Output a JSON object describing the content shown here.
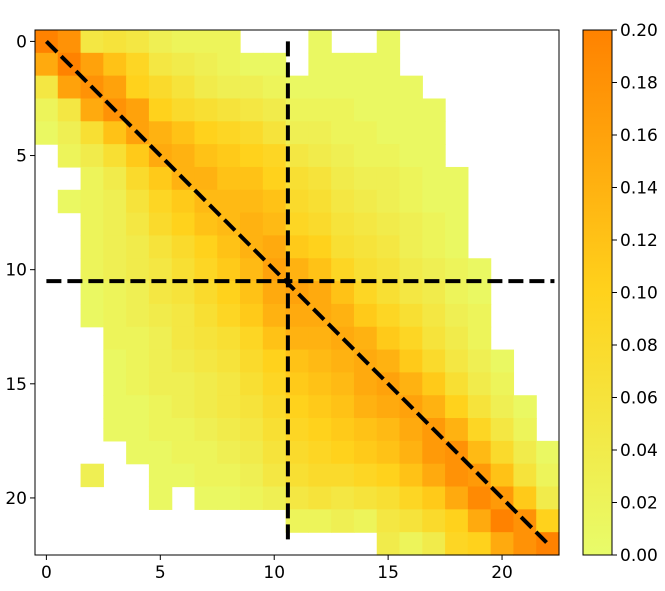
{
  "chart_data": {
    "type": "heatmap",
    "title": "",
    "xlabel": "",
    "ylabel": "",
    "size": 23,
    "xlim": [
      -0.5,
      22.5
    ],
    "ylim": [
      22.5,
      -0.5
    ],
    "x_ticks": [
      0,
      5,
      10,
      15,
      20
    ],
    "y_ticks": [
      0,
      5,
      10,
      15,
      20
    ],
    "colorbar": {
      "min": 0.0,
      "max": 0.2,
      "ticks": [
        "0.00",
        "0.02",
        "0.04",
        "0.06",
        "0.08",
        "0.10",
        "0.12",
        "0.14",
        "0.16",
        "0.18",
        "0.20"
      ],
      "color_low": "#e8fc6a",
      "color_mid": "#ffd21c",
      "color_high": "#ff8200"
    },
    "empty_color": "#ffffff",
    "values": [
      [
        0.2,
        0.18,
        0.05,
        0.06,
        0.05,
        0.03,
        0.02,
        0.02,
        0.02,
        null,
        null,
        null,
        0.01,
        null,
        null,
        0.01,
        null,
        null,
        null,
        null,
        null,
        null,
        null
      ],
      [
        0.15,
        0.2,
        0.16,
        0.12,
        0.09,
        0.05,
        0.04,
        0.03,
        0.02,
        0.01,
        0.01,
        null,
        0.01,
        0.01,
        0.01,
        0.01,
        null,
        null,
        null,
        null,
        null,
        null,
        null
      ],
      [
        0.05,
        0.16,
        0.18,
        0.16,
        0.1,
        0.08,
        0.06,
        0.04,
        0.03,
        0.03,
        0.02,
        0.01,
        0.01,
        0.01,
        0.01,
        0.01,
        0.01,
        null,
        null,
        null,
        null,
        null,
        null
      ],
      [
        0.02,
        0.05,
        0.15,
        0.18,
        0.16,
        0.1,
        0.08,
        0.07,
        0.06,
        0.05,
        0.04,
        0.02,
        0.02,
        0.02,
        0.01,
        0.01,
        0.01,
        0.01,
        null,
        null,
        null,
        null,
        null
      ],
      [
        0.01,
        0.03,
        0.07,
        0.12,
        0.16,
        0.14,
        0.12,
        0.1,
        0.09,
        0.08,
        0.06,
        0.03,
        0.03,
        0.02,
        0.02,
        0.01,
        0.01,
        0.01,
        null,
        null,
        null,
        null,
        null
      ],
      [
        null,
        0.02,
        0.04,
        0.07,
        0.11,
        0.15,
        0.14,
        0.12,
        0.11,
        0.1,
        0.09,
        0.05,
        0.04,
        0.03,
        0.02,
        0.02,
        0.01,
        0.01,
        null,
        null,
        null,
        null,
        null
      ],
      [
        null,
        null,
        0.02,
        0.04,
        0.08,
        0.11,
        0.14,
        0.14,
        0.12,
        0.12,
        0.1,
        0.07,
        0.06,
        0.04,
        0.03,
        0.03,
        0.02,
        0.01,
        0.01,
        null,
        null,
        null,
        null
      ],
      [
        null,
        0.01,
        0.02,
        0.03,
        0.06,
        0.09,
        0.11,
        0.13,
        0.13,
        0.13,
        0.12,
        0.08,
        0.07,
        0.05,
        0.04,
        0.03,
        0.02,
        0.01,
        0.01,
        null,
        null,
        null,
        null
      ],
      [
        null,
        null,
        0.02,
        0.03,
        0.05,
        0.08,
        0.1,
        0.12,
        0.13,
        0.14,
        0.13,
        0.09,
        0.08,
        0.06,
        0.05,
        0.04,
        0.03,
        0.02,
        0.01,
        null,
        null,
        null,
        null
      ],
      [
        null,
        null,
        0.02,
        0.03,
        0.04,
        0.06,
        0.08,
        0.1,
        0.12,
        0.14,
        0.15,
        0.11,
        0.1,
        0.07,
        0.06,
        0.05,
        0.03,
        0.02,
        0.01,
        null,
        null,
        null,
        null
      ],
      [
        null,
        null,
        0.02,
        0.03,
        0.04,
        0.05,
        0.07,
        0.09,
        0.11,
        0.13,
        0.16,
        0.14,
        0.12,
        0.09,
        0.07,
        0.06,
        0.04,
        0.03,
        0.02,
        0.01,
        null,
        null,
        null
      ],
      [
        null,
        null,
        0.01,
        0.02,
        0.03,
        0.05,
        0.06,
        0.08,
        0.1,
        0.12,
        0.15,
        0.16,
        0.15,
        0.12,
        0.09,
        0.07,
        0.05,
        0.04,
        0.02,
        0.01,
        null,
        null,
        null
      ],
      [
        null,
        null,
        0.01,
        0.02,
        0.03,
        0.04,
        0.05,
        0.07,
        0.09,
        0.11,
        0.14,
        0.15,
        0.15,
        0.14,
        0.11,
        0.09,
        0.07,
        0.05,
        0.03,
        0.02,
        null,
        null,
        null
      ],
      [
        null,
        null,
        null,
        0.02,
        0.02,
        0.03,
        0.05,
        0.06,
        0.07,
        0.09,
        0.12,
        0.14,
        0.14,
        0.15,
        0.14,
        0.11,
        0.09,
        0.06,
        0.04,
        0.02,
        null,
        null,
        null
      ],
      [
        null,
        null,
        null,
        0.01,
        0.02,
        0.03,
        0.04,
        0.05,
        0.06,
        0.08,
        0.1,
        0.12,
        0.13,
        0.14,
        0.15,
        0.14,
        0.11,
        0.08,
        0.05,
        0.03,
        0.01,
        null,
        null
      ],
      [
        null,
        null,
        null,
        0.01,
        0.02,
        0.03,
        0.03,
        0.04,
        0.05,
        0.07,
        0.09,
        0.11,
        0.12,
        0.13,
        0.15,
        0.16,
        0.14,
        0.11,
        0.07,
        0.04,
        0.02,
        null,
        null
      ],
      [
        null,
        null,
        null,
        0.01,
        0.01,
        0.02,
        0.03,
        0.04,
        0.05,
        0.06,
        0.08,
        0.1,
        0.11,
        0.12,
        0.14,
        0.15,
        0.16,
        0.14,
        0.1,
        0.06,
        0.03,
        0.01,
        null
      ],
      [
        null,
        null,
        null,
        0.01,
        0.01,
        0.02,
        0.02,
        0.03,
        0.04,
        0.05,
        0.07,
        0.09,
        0.1,
        0.11,
        0.12,
        0.13,
        0.15,
        0.17,
        0.14,
        0.09,
        0.05,
        0.02,
        null
      ],
      [
        null,
        null,
        null,
        null,
        0.01,
        0.01,
        0.02,
        0.02,
        0.03,
        0.04,
        0.06,
        0.08,
        0.09,
        0.1,
        0.11,
        0.12,
        0.14,
        0.17,
        0.18,
        0.13,
        0.08,
        0.04,
        0.01
      ],
      [
        null,
        null,
        0.03,
        null,
        null,
        0.01,
        0.01,
        0.02,
        0.02,
        0.03,
        0.05,
        0.07,
        0.08,
        0.08,
        0.09,
        0.1,
        0.12,
        0.15,
        0.18,
        0.17,
        0.12,
        0.06,
        0.02
      ],
      [
        null,
        null,
        null,
        null,
        null,
        0.01,
        null,
        0.01,
        0.01,
        0.02,
        0.03,
        0.05,
        0.06,
        0.05,
        0.06,
        0.07,
        0.09,
        0.11,
        0.15,
        0.19,
        0.17,
        0.11,
        0.04
      ],
      [
        null,
        null,
        null,
        null,
        null,
        null,
        null,
        null,
        null,
        null,
        null,
        0.02,
        0.02,
        0.03,
        0.02,
        0.05,
        0.06,
        0.08,
        0.1,
        0.15,
        0.2,
        0.18,
        0.1
      ],
      [
        null,
        null,
        null,
        null,
        null,
        null,
        null,
        null,
        null,
        null,
        null,
        null,
        null,
        null,
        null,
        0.04,
        0.02,
        0.04,
        0.09,
        0.1,
        0.15,
        0.18,
        0.2
      ]
    ],
    "annotations": {
      "diagonal": {
        "from": [
          0,
          0
        ],
        "to": [
          22,
          22
        ],
        "style": "dashed",
        "color": "#000000"
      },
      "vertical_line": {
        "x": 10.6,
        "y_from": 0,
        "y_to": 22,
        "style": "dashed",
        "color": "#000000"
      },
      "horizontal_line": {
        "y": 10.5,
        "x_from": 0,
        "x_to": 22.3,
        "style": "dashed",
        "color": "#000000"
      }
    }
  }
}
